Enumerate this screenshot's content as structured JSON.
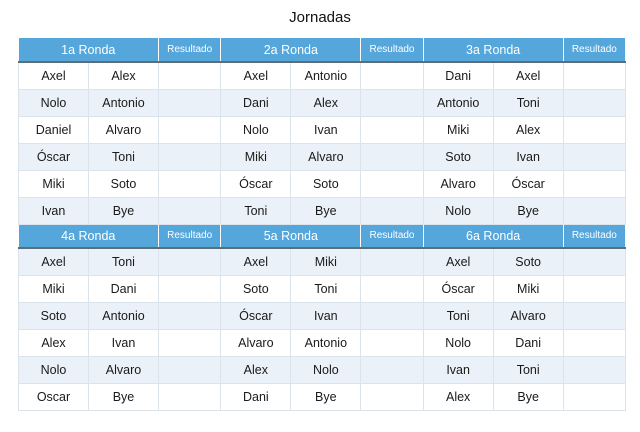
{
  "title": "Jornadas",
  "result_header": "Resultado",
  "rounds": [
    {
      "name": "1a Ronda",
      "pairs": [
        [
          "Axel",
          "Alex"
        ],
        [
          "Nolo",
          "Antonio"
        ],
        [
          "Daniel",
          "Alvaro"
        ],
        [
          "Óscar",
          "Toni"
        ],
        [
          "Miki",
          "Soto"
        ],
        [
          "Ivan",
          "Bye"
        ]
      ]
    },
    {
      "name": "2a Ronda",
      "pairs": [
        [
          "Axel",
          "Antonio"
        ],
        [
          "Dani",
          "Alex"
        ],
        [
          "Nolo",
          "Ivan"
        ],
        [
          "Miki",
          "Alvaro"
        ],
        [
          "Óscar",
          "Soto"
        ],
        [
          "Toni",
          "Bye"
        ]
      ]
    },
    {
      "name": "3a Ronda",
      "pairs": [
        [
          "Dani",
          "Axel"
        ],
        [
          "Antonio",
          "Toni"
        ],
        [
          "Miki",
          "Alex"
        ],
        [
          "Soto",
          "Ivan"
        ],
        [
          "Alvaro",
          "Óscar"
        ],
        [
          "Nolo",
          "Bye"
        ]
      ]
    },
    {
      "name": "4a Ronda",
      "pairs": [
        [
          "Axel",
          "Toni"
        ],
        [
          "Miki",
          "Dani"
        ],
        [
          "Soto",
          "Antonio"
        ],
        [
          "Alex",
          "Ivan"
        ],
        [
          "Nolo",
          "Alvaro"
        ],
        [
          "Oscar",
          "Bye"
        ]
      ]
    },
    {
      "name": "5a Ronda",
      "pairs": [
        [
          "Axel",
          "Miki"
        ],
        [
          "Soto",
          "Toni"
        ],
        [
          "Óscar",
          "Ivan"
        ],
        [
          "Alvaro",
          "Antonio"
        ],
        [
          "Alex",
          "Nolo"
        ],
        [
          "Dani",
          "Bye"
        ]
      ]
    },
    {
      "name": "6a Ronda",
      "pairs": [
        [
          "Axel",
          "Soto"
        ],
        [
          "Óscar",
          "Miki"
        ],
        [
          "Toni",
          "Alvaro"
        ],
        [
          "Nolo",
          "Dani"
        ],
        [
          "Ivan",
          "Toni"
        ],
        [
          "Alex",
          "Bye"
        ]
      ]
    }
  ],
  "colors": {
    "header_bg": "#55a6db",
    "header_text": "#ffffff",
    "row_alt_bg": "#eaf1f8",
    "cell_border": "#dce4eb",
    "header_underline": "#5d6c79",
    "text": "#1a1a1a"
  }
}
